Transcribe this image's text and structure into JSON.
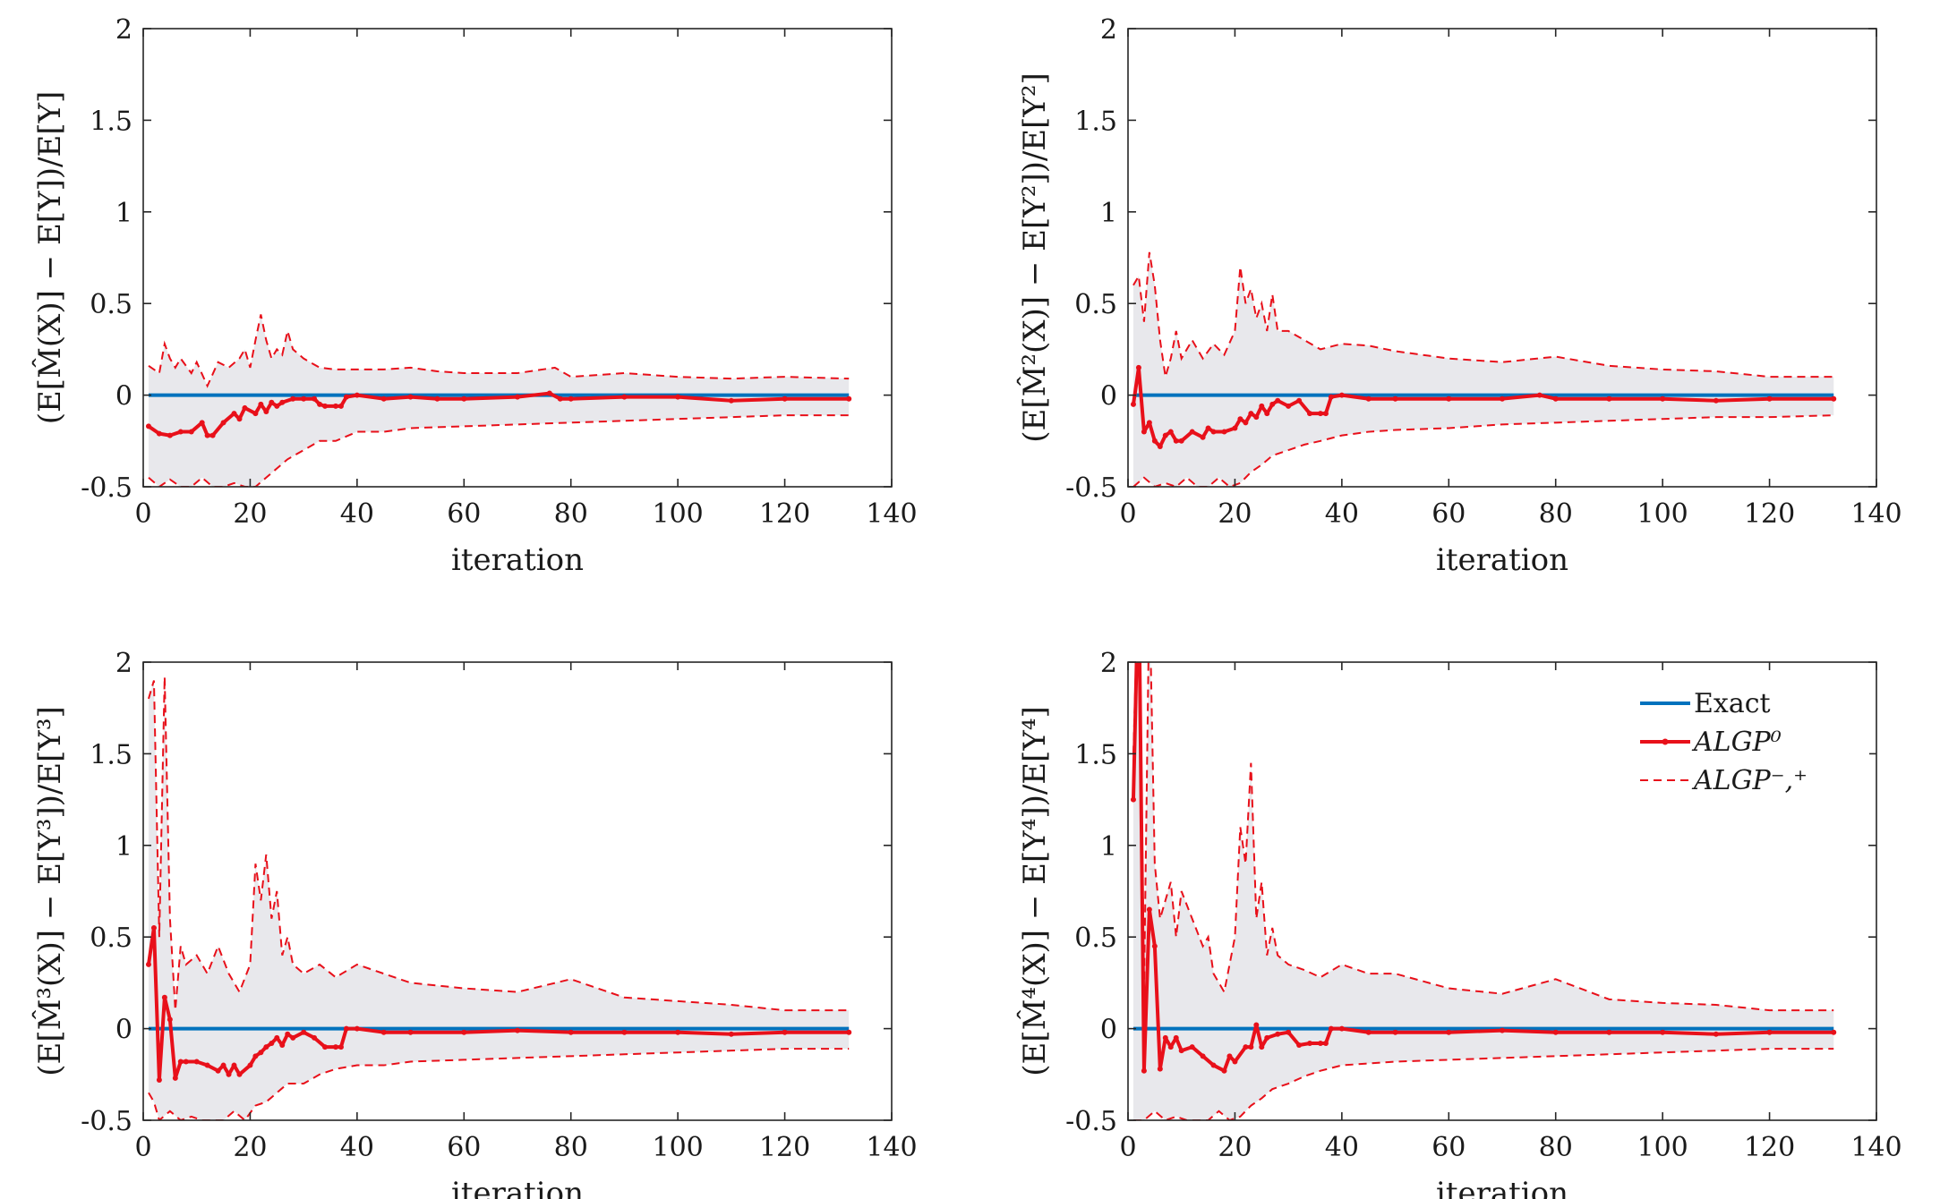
{
  "colors": {
    "exact": "#0072BD",
    "algp": "#E8101A",
    "band_fill": "#E8E8EC",
    "axis": "#262626"
  },
  "legend": {
    "exact": "Exact",
    "algp0": "ALGP⁰",
    "algp_bounds": "ALGP⁻,⁺"
  },
  "chart_data": [
    {
      "type": "line",
      "ylabel": "(E[M̂(X)] − E[Y])/E[Y]",
      "xlabel": "iteration",
      "xlim": [
        0,
        140
      ],
      "ylim": [
        -0.5,
        2
      ],
      "xticks": [
        0,
        20,
        40,
        60,
        80,
        100,
        120,
        140
      ],
      "yticks": [
        -0.5,
        0,
        0.5,
        1,
        1.5,
        2
      ],
      "xtick_labels": [
        "0",
        "20",
        "40",
        "60",
        "80",
        "100",
        "120",
        "140"
      ],
      "ytick_labels": [
        "-0.5",
        "0",
        "0.5",
        "1",
        "1.5",
        "2"
      ],
      "series": [
        {
          "name": "Exact",
          "x": [
            1,
            132
          ],
          "values": [
            0,
            0
          ]
        },
        {
          "name": "ALGP0",
          "x": [
            1,
            3,
            5,
            7,
            9,
            11,
            12,
            13,
            15,
            17,
            18,
            19,
            21,
            22,
            23,
            24,
            25,
            26,
            28,
            30,
            32,
            33,
            34,
            36,
            37,
            38,
            40,
            45,
            50,
            55,
            60,
            70,
            76,
            78,
            80,
            90,
            100,
            110,
            120,
            132
          ],
          "values": [
            -0.17,
            -0.21,
            -0.22,
            -0.2,
            -0.2,
            -0.15,
            -0.22,
            -0.22,
            -0.15,
            -0.1,
            -0.13,
            -0.07,
            -0.1,
            -0.05,
            -0.09,
            -0.04,
            -0.06,
            -0.04,
            -0.02,
            -0.02,
            -0.02,
            -0.05,
            -0.06,
            -0.06,
            -0.06,
            -0.01,
            0,
            -0.02,
            -0.01,
            -0.02,
            -0.02,
            -0.01,
            0.01,
            -0.02,
            -0.02,
            -0.01,
            -0.01,
            -0.03,
            -0.02,
            -0.02
          ]
        },
        {
          "name": "ALGP upper",
          "x": [
            1,
            3,
            4,
            5,
            6,
            7,
            9,
            10,
            12,
            14,
            16,
            18,
            19,
            20,
            21,
            22,
            23,
            24,
            25,
            26,
            27,
            28,
            30,
            33,
            36,
            40,
            45,
            50,
            55,
            60,
            70,
            77,
            80,
            90,
            100,
            110,
            120,
            132
          ],
          "values": [
            0.16,
            0.12,
            0.28,
            0.2,
            0.15,
            0.2,
            0.12,
            0.18,
            0.05,
            0.18,
            0.15,
            0.2,
            0.25,
            0.15,
            0.3,
            0.44,
            0.3,
            0.2,
            0.25,
            0.22,
            0.35,
            0.25,
            0.2,
            0.15,
            0.14,
            0.14,
            0.14,
            0.15,
            0.13,
            0.12,
            0.12,
            0.15,
            0.1,
            0.12,
            0.1,
            0.09,
            0.1,
            0.09
          ]
        },
        {
          "name": "ALGP lower",
          "x": [
            1,
            3,
            5,
            7,
            9,
            11,
            13,
            15,
            17,
            19,
            21,
            23,
            25,
            27,
            30,
            33,
            36,
            40,
            45,
            50,
            60,
            70,
            80,
            90,
            100,
            110,
            120,
            132
          ],
          "values": [
            -0.45,
            -0.5,
            -0.46,
            -0.5,
            -0.5,
            -0.45,
            -0.5,
            -0.5,
            -0.48,
            -0.5,
            -0.5,
            -0.45,
            -0.4,
            -0.35,
            -0.3,
            -0.25,
            -0.25,
            -0.2,
            -0.2,
            -0.18,
            -0.17,
            -0.16,
            -0.15,
            -0.14,
            -0.13,
            -0.12,
            -0.11,
            -0.11
          ]
        }
      ]
    },
    {
      "type": "line",
      "ylabel": "(E[M̂²(X)] − E[Y²])/E[Y²]",
      "xlabel": "iteration",
      "xlim": [
        0,
        140
      ],
      "ylim": [
        -0.5,
        2
      ],
      "xticks": [
        0,
        20,
        40,
        60,
        80,
        100,
        120,
        140
      ],
      "yticks": [
        -0.5,
        0,
        0.5,
        1,
        1.5,
        2
      ],
      "xtick_labels": [
        "0",
        "20",
        "40",
        "60",
        "80",
        "100",
        "120",
        "140"
      ],
      "ytick_labels": [
        "-0.5",
        "0",
        "0.5",
        "1",
        "1.5",
        "2"
      ],
      "series": [
        {
          "name": "Exact",
          "x": [
            1,
            132
          ],
          "values": [
            0,
            0
          ]
        },
        {
          "name": "ALGP0",
          "x": [
            1,
            2,
            3,
            4,
            5,
            6,
            7,
            8,
            9,
            10,
            12,
            14,
            15,
            16,
            18,
            20,
            21,
            22,
            23,
            24,
            25,
            26,
            27,
            28,
            30,
            32,
            34,
            36,
            37,
            38,
            40,
            45,
            50,
            60,
            70,
            77,
            80,
            90,
            100,
            110,
            120,
            132
          ],
          "values": [
            -0.05,
            0.15,
            -0.2,
            -0.15,
            -0.25,
            -0.28,
            -0.22,
            -0.2,
            -0.25,
            -0.25,
            -0.2,
            -0.23,
            -0.18,
            -0.2,
            -0.2,
            -0.18,
            -0.13,
            -0.15,
            -0.1,
            -0.12,
            -0.06,
            -0.1,
            -0.05,
            -0.03,
            -0.06,
            -0.03,
            -0.1,
            -0.1,
            -0.1,
            -0.01,
            0,
            -0.02,
            -0.02,
            -0.02,
            -0.02,
            0,
            -0.02,
            -0.02,
            -0.02,
            -0.03,
            -0.02,
            -0.02
          ]
        },
        {
          "name": "ALGP upper",
          "x": [
            1,
            2,
            3,
            4,
            5,
            6,
            7,
            8,
            9,
            10,
            12,
            14,
            16,
            18,
            20,
            21,
            22,
            23,
            24,
            25,
            26,
            27,
            28,
            30,
            33,
            36,
            40,
            45,
            50,
            60,
            70,
            80,
            90,
            100,
            110,
            120,
            132
          ],
          "values": [
            0.6,
            0.65,
            0.4,
            0.78,
            0.6,
            0.3,
            0.1,
            0.2,
            0.35,
            0.2,
            0.3,
            0.2,
            0.28,
            0.22,
            0.35,
            0.7,
            0.5,
            0.58,
            0.42,
            0.5,
            0.35,
            0.55,
            0.35,
            0.35,
            0.3,
            0.25,
            0.28,
            0.27,
            0.24,
            0.2,
            0.18,
            0.21,
            0.16,
            0.14,
            0.13,
            0.1,
            0.1
          ]
        },
        {
          "name": "ALGP lower",
          "x": [
            1,
            3,
            5,
            7,
            9,
            11,
            13,
            15,
            17,
            19,
            21,
            23,
            25,
            27,
            30,
            33,
            36,
            40,
            45,
            50,
            60,
            70,
            80,
            90,
            100,
            110,
            120,
            132
          ],
          "values": [
            -0.5,
            -0.45,
            -0.5,
            -0.48,
            -0.5,
            -0.45,
            -0.5,
            -0.5,
            -0.45,
            -0.5,
            -0.48,
            -0.42,
            -0.38,
            -0.33,
            -0.3,
            -0.27,
            -0.25,
            -0.22,
            -0.2,
            -0.19,
            -0.18,
            -0.16,
            -0.15,
            -0.14,
            -0.13,
            -0.12,
            -0.12,
            -0.11
          ]
        }
      ]
    },
    {
      "type": "line",
      "ylabel": "(E[M̂³(X)] − E[Y³])/E[Y³]",
      "xlabel": "iteration",
      "xlim": [
        0,
        140
      ],
      "ylim": [
        -0.5,
        2
      ],
      "xticks": [
        0,
        20,
        40,
        60,
        80,
        100,
        120,
        140
      ],
      "yticks": [
        -0.5,
        0,
        0.5,
        1,
        1.5,
        2
      ],
      "xtick_labels": [
        "0",
        "20",
        "40",
        "60",
        "80",
        "100",
        "120",
        "140"
      ],
      "ytick_labels": [
        "-0.5",
        "0",
        "0.5",
        "1",
        "1.5",
        "2"
      ],
      "series": [
        {
          "name": "Exact",
          "x": [
            1,
            132
          ],
          "values": [
            0,
            0
          ]
        },
        {
          "name": "ALGP0",
          "x": [
            1,
            2,
            3,
            4,
            5,
            6,
            7,
            8,
            10,
            12,
            14,
            15,
            16,
            17,
            18,
            20,
            21,
            22,
            23,
            24,
            25,
            26,
            27,
            28,
            30,
            32,
            34,
            36,
            37,
            38,
            40,
            45,
            50,
            60,
            70,
            80,
            90,
            100,
            110,
            120,
            132
          ],
          "values": [
            0.35,
            0.55,
            -0.28,
            0.17,
            0.05,
            -0.27,
            -0.18,
            -0.18,
            -0.18,
            -0.2,
            -0.23,
            -0.2,
            -0.25,
            -0.2,
            -0.25,
            -0.2,
            -0.15,
            -0.13,
            -0.1,
            -0.08,
            -0.05,
            -0.09,
            -0.03,
            -0.05,
            -0.02,
            -0.05,
            -0.1,
            -0.1,
            -0.1,
            0,
            0,
            -0.02,
            -0.02,
            -0.02,
            -0.01,
            -0.02,
            -0.02,
            -0.02,
            -0.03,
            -0.02,
            -0.02
          ]
        },
        {
          "name": "ALGP upper",
          "x": [
            1,
            2,
            3,
            4,
            5,
            6,
            7,
            8,
            10,
            12,
            14,
            16,
            18,
            20,
            21,
            22,
            23,
            24,
            25,
            26,
            27,
            28,
            30,
            33,
            36,
            40,
            45,
            50,
            60,
            70,
            80,
            90,
            100,
            110,
            120,
            132
          ],
          "values": [
            1.8,
            1.9,
            0.5,
            1.92,
            0.6,
            0.1,
            0.45,
            0.35,
            0.4,
            0.3,
            0.45,
            0.3,
            0.2,
            0.35,
            0.9,
            0.7,
            0.95,
            0.6,
            0.75,
            0.4,
            0.5,
            0.35,
            0.3,
            0.35,
            0.28,
            0.35,
            0.3,
            0.25,
            0.22,
            0.2,
            0.27,
            0.17,
            0.15,
            0.13,
            0.1,
            0.1
          ]
        },
        {
          "name": "ALGP lower",
          "x": [
            1,
            2,
            3,
            5,
            7,
            9,
            11,
            13,
            15,
            17,
            19,
            21,
            23,
            25,
            27,
            30,
            33,
            36,
            40,
            45,
            50,
            60,
            70,
            80,
            90,
            100,
            110,
            120,
            132
          ],
          "values": [
            -0.35,
            -0.4,
            -0.5,
            -0.45,
            -0.5,
            -0.48,
            -0.5,
            -0.5,
            -0.5,
            -0.45,
            -0.5,
            -0.42,
            -0.4,
            -0.35,
            -0.3,
            -0.3,
            -0.25,
            -0.22,
            -0.2,
            -0.2,
            -0.18,
            -0.17,
            -0.16,
            -0.15,
            -0.14,
            -0.13,
            -0.12,
            -0.11,
            -0.11
          ]
        }
      ]
    },
    {
      "type": "line",
      "ylabel": "(E[M̂⁴(X)] − E[Y⁴])/E[Y⁴]",
      "xlabel": "iteration",
      "xlim": [
        0,
        140
      ],
      "ylim": [
        -0.5,
        2
      ],
      "xticks": [
        0,
        20,
        40,
        60,
        80,
        100,
        120,
        140
      ],
      "yticks": [
        -0.5,
        0,
        0.5,
        1,
        1.5,
        2
      ],
      "xtick_labels": [
        "0",
        "20",
        "40",
        "60",
        "80",
        "100",
        "120",
        "140"
      ],
      "ytick_labels": [
        "-0.5",
        "0",
        "0.5",
        "1",
        "1.5",
        "2"
      ],
      "legend_position": "top-right",
      "series": [
        {
          "name": "Exact",
          "x": [
            1,
            132
          ],
          "values": [
            0,
            0
          ]
        },
        {
          "name": "ALGP0",
          "x": [
            1,
            2,
            3,
            4,
            5,
            6,
            7,
            8,
            9,
            10,
            12,
            14,
            16,
            18,
            19,
            20,
            22,
            23,
            24,
            25,
            26,
            28,
            30,
            32,
            34,
            36,
            37,
            38,
            40,
            45,
            50,
            60,
            70,
            80,
            90,
            100,
            110,
            120,
            132
          ],
          "values": [
            1.25,
            2.5,
            -0.23,
            0.65,
            0.45,
            -0.22,
            -0.05,
            -0.1,
            -0.05,
            -0.12,
            -0.1,
            -0.15,
            -0.2,
            -0.23,
            -0.15,
            -0.18,
            -0.1,
            -0.1,
            0.02,
            -0.1,
            -0.05,
            -0.03,
            -0.02,
            -0.09,
            -0.08,
            -0.08,
            -0.08,
            0,
            0,
            -0.02,
            -0.02,
            -0.02,
            -0.01,
            -0.02,
            -0.02,
            -0.02,
            -0.03,
            -0.02,
            -0.02
          ]
        },
        {
          "name": "ALGP upper",
          "x": [
            1,
            2,
            3,
            4,
            5,
            6,
            7,
            8,
            9,
            10,
            12,
            14,
            15,
            16,
            18,
            20,
            21,
            22,
            23,
            24,
            25,
            26,
            27,
            28,
            30,
            33,
            36,
            40,
            45,
            50,
            60,
            70,
            80,
            90,
            100,
            110,
            120,
            132
          ],
          "values": [
            1.5,
            2.5,
            0.2,
            2.4,
            0.9,
            0.6,
            0.7,
            0.8,
            0.5,
            0.75,
            0.6,
            0.45,
            0.5,
            0.3,
            0.2,
            0.5,
            1.1,
            0.9,
            1.45,
            0.6,
            0.8,
            0.4,
            0.55,
            0.4,
            0.35,
            0.32,
            0.28,
            0.35,
            0.3,
            0.3,
            0.22,
            0.19,
            0.27,
            0.16,
            0.14,
            0.13,
            0.1,
            0.1
          ]
        },
        {
          "name": "ALGP lower",
          "x": [
            1,
            2,
            3,
            5,
            7,
            9,
            11,
            13,
            15,
            17,
            19,
            21,
            23,
            25,
            27,
            30,
            33,
            36,
            40,
            45,
            50,
            60,
            70,
            80,
            90,
            100,
            110,
            120,
            132
          ],
          "values": [
            -0.5,
            -0.5,
            -0.5,
            -0.45,
            -0.5,
            -0.48,
            -0.5,
            -0.5,
            -0.5,
            -0.45,
            -0.5,
            -0.48,
            -0.42,
            -0.38,
            -0.33,
            -0.3,
            -0.26,
            -0.23,
            -0.2,
            -0.19,
            -0.18,
            -0.17,
            -0.16,
            -0.15,
            -0.14,
            -0.13,
            -0.12,
            -0.11,
            -0.11
          ]
        }
      ]
    }
  ]
}
